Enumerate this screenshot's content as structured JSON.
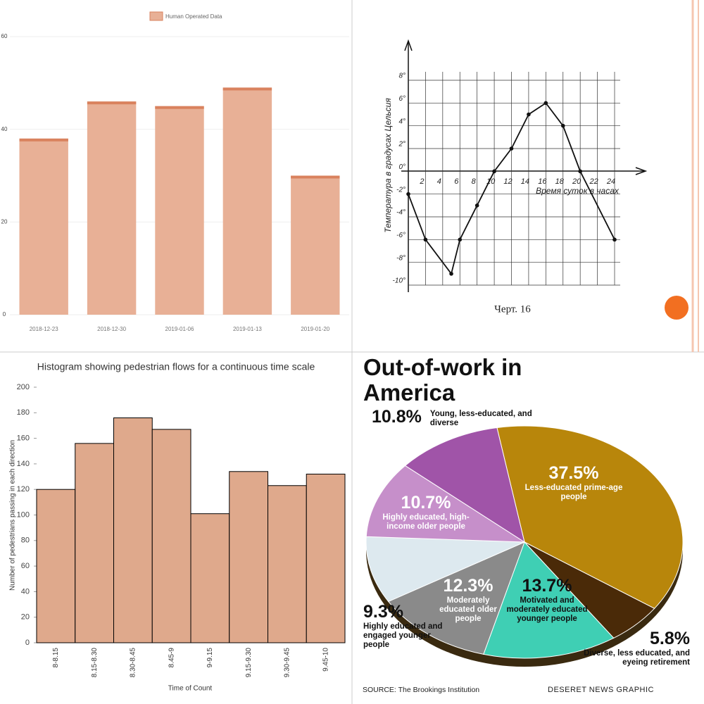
{
  "chart_data": [
    {
      "type": "bar",
      "categories": [
        "2018-12-23",
        "2018-12-30",
        "2019-01-06",
        "2019-01-13",
        "2019-01-20"
      ],
      "series": [
        {
          "name": "Human Operated Data",
          "color": "#e8b096",
          "values": [
            38,
            46,
            45,
            49,
            30
          ]
        }
      ],
      "ylim": [
        0,
        60
      ],
      "yticks": [
        0,
        20,
        40,
        60
      ],
      "grid": true,
      "legend": "top"
    },
    {
      "type": "line",
      "x": [
        0,
        2,
        5,
        6,
        8,
        10,
        12,
        14,
        16,
        18,
        20,
        24
      ],
      "series": [
        {
          "color": "#111111",
          "values": [
            -2,
            -6,
            -9,
            -6,
            -3,
            0,
            2,
            5,
            6,
            4,
            0,
            -6
          ]
        }
      ],
      "xlim": [
        0,
        24
      ],
      "ylim": [
        -10,
        8
      ],
      "xticks": [
        2,
        4,
        6,
        8,
        10,
        12,
        14,
        16,
        18,
        20,
        22,
        24
      ],
      "yticks": [
        {
          "value": 8,
          "label": "8°"
        },
        {
          "value": 6,
          "label": "6°"
        },
        {
          "value": 4,
          "label": "4°"
        },
        {
          "value": 2,
          "label": "2°"
        },
        {
          "value": 0,
          "label": "0°"
        },
        {
          "value": -2,
          "label": "-2°"
        },
        {
          "value": -4,
          "label": "-4°"
        },
        {
          "value": -6,
          "label": "-6°"
        },
        {
          "value": -8,
          "label": "-8°"
        },
        {
          "value": -10,
          "label": "-10°"
        }
      ],
      "xlabel": "Время суток в часах",
      "ylabel": "Температура в градусах Цельсия",
      "caption": "Черт. 16",
      "grid": true
    },
    {
      "type": "bar",
      "title": "Histogram showing pedestrian flows for a continuous time scale",
      "xlabel": "Time of Count",
      "ylabel": "Number of pedestrians passing in each direction",
      "categories": [
        "8-8.15",
        "8.15-8.30",
        "8.30-8.45",
        "8.45-9",
        "9-9.15",
        "9.15-9.30",
        "9.30-9.45",
        "9.45-10"
      ],
      "values": [
        120,
        156,
        176,
        167,
        101,
        134,
        123,
        132
      ],
      "color": "#dfa98c",
      "ylim": [
        0,
        200
      ],
      "yticks": [
        0,
        20,
        40,
        60,
        80,
        100,
        120,
        140,
        160,
        180,
        200
      ],
      "grid": false
    },
    {
      "type": "pie",
      "title": "Out-of-work in America",
      "categories": [
        "Less-educated prime-age people",
        "Diverse, less educated, and eyeing retirement",
        "Motivated and moderately educated younger people",
        "Moderately educated older people",
        "Highly educated and engaged younger people",
        "Highly educated, high-income older people",
        "Young, less-educated, and diverse"
      ],
      "values": [
        37.5,
        5.8,
        13.7,
        12.3,
        9.3,
        10.7,
        10.8
      ],
      "value_labels": [
        "37.5%",
        "5.8%",
        "13.7%",
        "12.3%",
        "9.3%",
        "10.7%",
        "10.8%"
      ],
      "colors": [
        "#b8860b",
        "#4a2a08",
        "#3fcfb4",
        "#8a8a8a",
        "#dde9ef",
        "#c68fca",
        "#a054a8"
      ],
      "source": "SOURCE: The Brookings Institution",
      "credit": "DESERET NEWS GRAPHIC"
    }
  ]
}
